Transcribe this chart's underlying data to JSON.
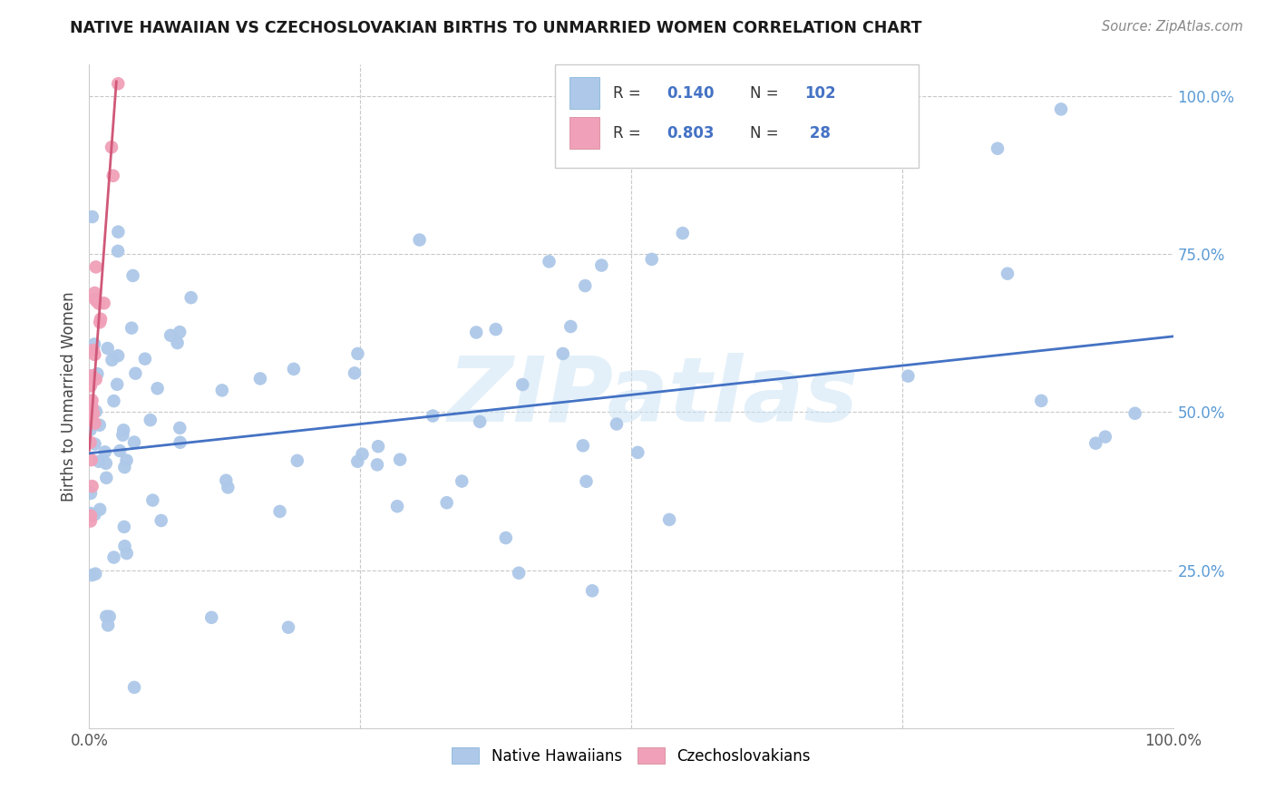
{
  "title": "NATIVE HAWAIIAN VS CZECHOSLOVAKIAN BIRTHS TO UNMARRIED WOMEN CORRELATION CHART",
  "source": "Source: ZipAtlas.com",
  "ylabel": "Births to Unmarried Women",
  "blue_color": "#adc8e8",
  "pink_color": "#f0a0b8",
  "line_blue": "#4472c4",
  "line_pink": "#d05878",
  "legend_text_color": "#4472c4",
  "watermark": "ZIPatlas",
  "blue_seed": 12345,
  "pink_seed": 99999
}
